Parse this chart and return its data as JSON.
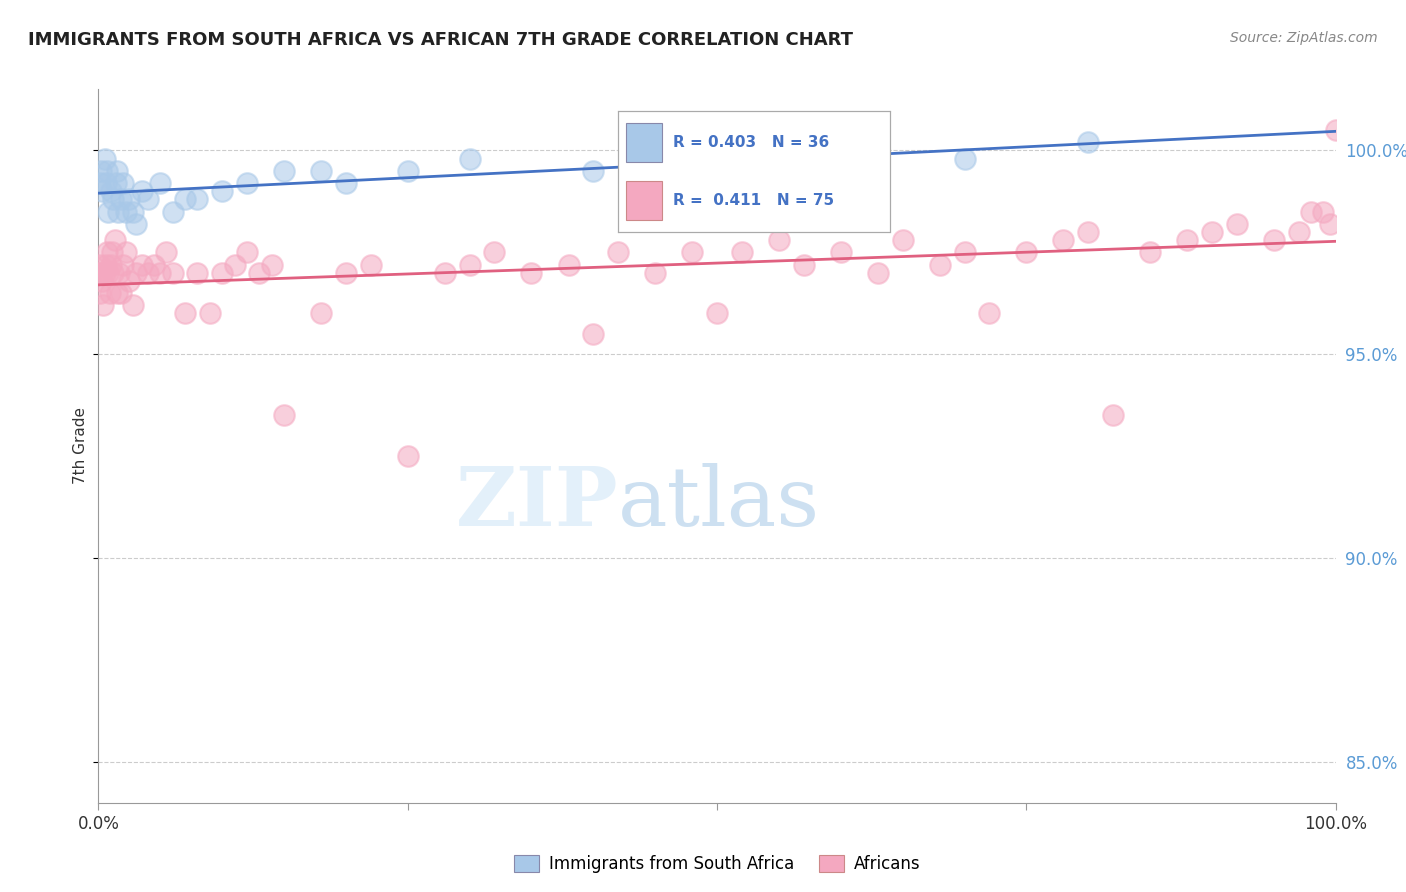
{
  "title": "IMMIGRANTS FROM SOUTH AFRICA VS AFRICAN 7TH GRADE CORRELATION CHART",
  "source": "Source: ZipAtlas.com",
  "ylabel": "7th Grade",
  "legend_label1": "Immigrants from South Africa",
  "legend_label2": "Africans",
  "R1": 0.403,
  "N1": 36,
  "R2": 0.411,
  "N2": 75,
  "color_blue": "#A8C8E8",
  "color_pink": "#F4A8C0",
  "color_blue_line": "#4472C4",
  "color_pink_line": "#E06080",
  "ylim_min": 84.0,
  "ylim_max": 101.5,
  "xlim_min": 0.0,
  "xlim_max": 100.0,
  "yticks": [
    85.0,
    90.0,
    95.0,
    100.0
  ],
  "blue_points_x": [
    0.1,
    0.2,
    0.3,
    0.5,
    0.6,
    0.7,
    0.8,
    1.0,
    1.2,
    1.4,
    1.5,
    1.6,
    1.8,
    2.0,
    2.2,
    2.5,
    2.8,
    3.0,
    3.5,
    4.0,
    5.0,
    6.0,
    7.0,
    8.0,
    10.0,
    12.0,
    15.0,
    18.0,
    20.0,
    25.0,
    30.0,
    40.0,
    50.0,
    60.0,
    70.0,
    80.0
  ],
  "blue_points_y": [
    99.2,
    99.5,
    99.0,
    99.8,
    99.2,
    99.5,
    98.5,
    99.0,
    98.8,
    99.2,
    99.5,
    98.5,
    98.8,
    99.2,
    98.5,
    98.8,
    98.5,
    98.2,
    99.0,
    98.8,
    99.2,
    98.5,
    98.8,
    98.8,
    99.0,
    99.2,
    99.5,
    99.5,
    99.2,
    99.5,
    99.8,
    99.5,
    99.8,
    99.8,
    99.8,
    100.2
  ],
  "pink_points_x": [
    0.05,
    0.1,
    0.15,
    0.2,
    0.3,
    0.4,
    0.5,
    0.6,
    0.7,
    0.8,
    0.9,
    1.0,
    1.1,
    1.2,
    1.3,
    1.5,
    1.7,
    1.8,
    2.0,
    2.2,
    2.5,
    2.8,
    3.0,
    3.5,
    4.0,
    4.5,
    5.0,
    5.5,
    6.0,
    7.0,
    8.0,
    9.0,
    10.0,
    11.0,
    12.0,
    13.0,
    14.0,
    15.0,
    18.0,
    20.0,
    22.0,
    25.0,
    28.0,
    30.0,
    32.0,
    35.0,
    38.0,
    40.0,
    42.0,
    45.0,
    48.0,
    50.0,
    52.0,
    55.0,
    57.0,
    60.0,
    63.0,
    65.0,
    68.0,
    70.0,
    72.0,
    75.0,
    78.0,
    80.0,
    82.0,
    85.0,
    88.0,
    90.0,
    92.0,
    95.0,
    97.0,
    98.0,
    99.0,
    99.5,
    100.0
  ],
  "pink_points_y": [
    97.0,
    97.2,
    96.5,
    97.0,
    96.8,
    96.2,
    97.0,
    97.2,
    97.5,
    97.0,
    96.5,
    97.2,
    97.5,
    97.0,
    97.8,
    96.5,
    97.0,
    96.5,
    97.2,
    97.5,
    96.8,
    96.2,
    97.0,
    97.2,
    97.0,
    97.2,
    97.0,
    97.5,
    97.0,
    96.0,
    97.0,
    96.0,
    97.0,
    97.2,
    97.5,
    97.0,
    97.2,
    93.5,
    96.0,
    97.0,
    97.2,
    92.5,
    97.0,
    97.2,
    97.5,
    97.0,
    97.2,
    95.5,
    97.5,
    97.0,
    97.5,
    96.0,
    97.5,
    97.8,
    97.2,
    97.5,
    97.0,
    97.8,
    97.2,
    97.5,
    96.0,
    97.5,
    97.8,
    98.0,
    93.5,
    97.5,
    97.8,
    98.0,
    98.2,
    97.8,
    98.0,
    98.5,
    98.5,
    98.2,
    100.5
  ]
}
